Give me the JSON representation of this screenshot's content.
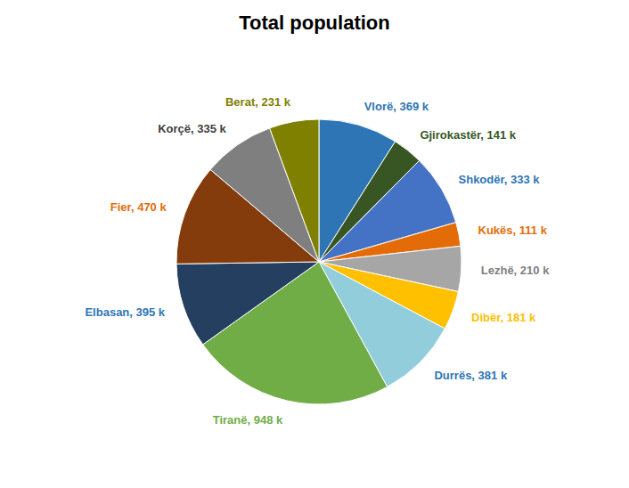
{
  "chart_data": {
    "type": "pie",
    "title": "Total population",
    "categories": [
      "Vlorë",
      "Gjirokastër",
      "Shkodër",
      "Kukës",
      "Lezhë",
      "Dibër",
      "Durrës",
      "Tiranë",
      "Elbasan",
      "Fier",
      "Korçë",
      "Berat"
    ],
    "values": [
      369,
      141,
      333,
      111,
      210,
      181,
      381,
      948,
      395,
      470,
      335,
      231
    ],
    "value_labels": [
      "Vlorë, 369 k",
      "Gjirokastër, 141 k",
      "Shkodër, 333 k",
      "Kukës, 111 k",
      "Lezhë, 210 k",
      "Dibër, 181 k",
      "Durrës, 381 k",
      "Tiranë, 948 k",
      "Elbasan, 395 k",
      "Fier, 470 k",
      "Korçë, 335 k",
      "Berat, 231 k"
    ],
    "colors": [
      "#2e75b6",
      "#375623",
      "#4472c4",
      "#e36c09",
      "#a6a6a6",
      "#ffc000",
      "#92cddc",
      "#70ad47",
      "#243f60",
      "#843c0c",
      "#7f7f7f",
      "#808000"
    ],
    "data_labels": true
  }
}
